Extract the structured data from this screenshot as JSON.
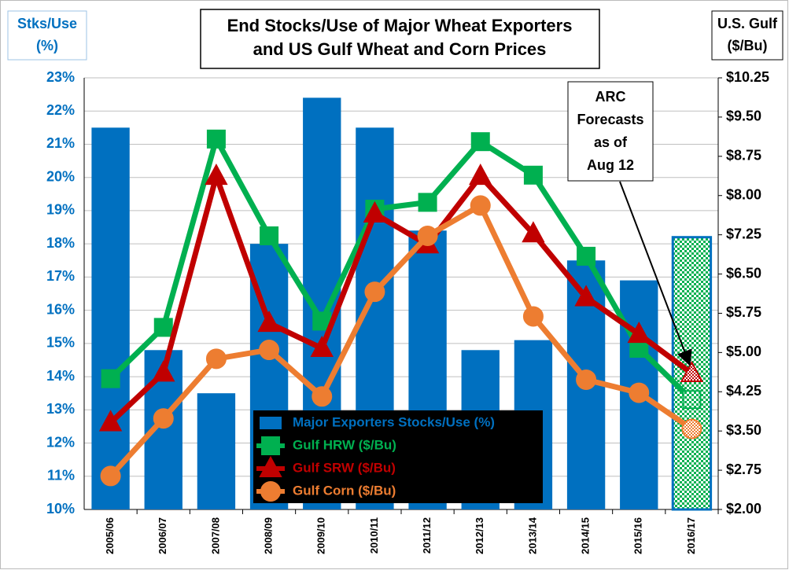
{
  "chart_data": {
    "type": "bar",
    "title": [
      "End Stocks/Use of Major Wheat Exporters",
      "and US Gulf Wheat and Corn Prices"
    ],
    "y_label": [
      "Stks/Use",
      "(%)"
    ],
    "y2_label": [
      "U.S. Gulf",
      "($/Bu)"
    ],
    "annotation": [
      "ARC",
      "Forecasts",
      "as of",
      "Aug 12"
    ],
    "categories": [
      "2005/06",
      "2006/07",
      "2007/08",
      "2008/09",
      "2009/10",
      "2010/11",
      "2011/12",
      "2012/13",
      "2013/14",
      "2014/15",
      "2015/16",
      "2016/17"
    ],
    "series": [
      {
        "name": "Major Exporters Stocks/Use (%)",
        "type": "bar",
        "color": "#0070c0",
        "values": [
          21.5,
          14.8,
          13.5,
          18.0,
          22.4,
          21.5,
          18.4,
          14.8,
          15.1,
          17.5,
          16.9,
          18.2
        ]
      },
      {
        "name": "Gulf HRW ($/Bu)",
        "type": "line",
        "marker": "square",
        "axis": "y2",
        "color": "#00b050",
        "values": [
          4.5,
          5.48,
          9.08,
          7.23,
          5.6,
          7.74,
          7.87,
          9.03,
          8.39,
          6.84,
          5.08,
          4.1
        ]
      },
      {
        "name": "Gulf SRW ($/Bu)",
        "type": "line",
        "marker": "triangle",
        "axis": "y2",
        "color": "#c00000",
        "values": [
          3.66,
          4.61,
          8.37,
          5.56,
          5.08,
          7.65,
          7.06,
          8.37,
          7.27,
          6.05,
          5.35,
          4.6
        ]
      },
      {
        "name": "Gulf Corn ($/Bu)",
        "type": "line",
        "marker": "circle",
        "axis": "y2",
        "color": "#ed7d31",
        "values": [
          2.64,
          3.74,
          4.88,
          5.05,
          4.16,
          6.16,
          7.23,
          7.81,
          5.69,
          4.48,
          4.23,
          3.54
        ]
      }
    ],
    "ylim": [
      10,
      23
    ],
    "yticks": [
      {
        "value": 10,
        "label": "10%"
      },
      {
        "value": 11,
        "label": "11%"
      },
      {
        "value": 12,
        "label": "12%"
      },
      {
        "value": 13,
        "label": "13%"
      },
      {
        "value": 14,
        "label": "14%"
      },
      {
        "value": 15,
        "label": "15%"
      },
      {
        "value": 16,
        "label": "16%"
      },
      {
        "value": 17,
        "label": "17%"
      },
      {
        "value": 18,
        "label": "18%"
      },
      {
        "value": 19,
        "label": "19%"
      },
      {
        "value": 20,
        "label": "20%"
      },
      {
        "value": 21,
        "label": "21%"
      },
      {
        "value": 22,
        "label": "22%"
      },
      {
        "value": 23,
        "label": "23%"
      }
    ],
    "y2lim": [
      2.0,
      10.25
    ],
    "y2ticks": [
      {
        "value": 2.0,
        "label": "$2.00"
      },
      {
        "value": 2.75,
        "label": "$2.75"
      },
      {
        "value": 3.5,
        "label": "$3.50"
      },
      {
        "value": 4.25,
        "label": "$4.25"
      },
      {
        "value": 5.0,
        "label": "$5.00"
      },
      {
        "value": 5.75,
        "label": "$5.75"
      },
      {
        "value": 6.5,
        "label": "$6.50"
      },
      {
        "value": 7.25,
        "label": "$7.25"
      },
      {
        "value": 8.0,
        "label": "$8.00"
      },
      {
        "value": 8.75,
        "label": "$8.75"
      },
      {
        "value": 9.5,
        "label": "$9.50"
      },
      {
        "value": 10.25,
        "label": "$10.25"
      }
    ],
    "grid": true
  }
}
